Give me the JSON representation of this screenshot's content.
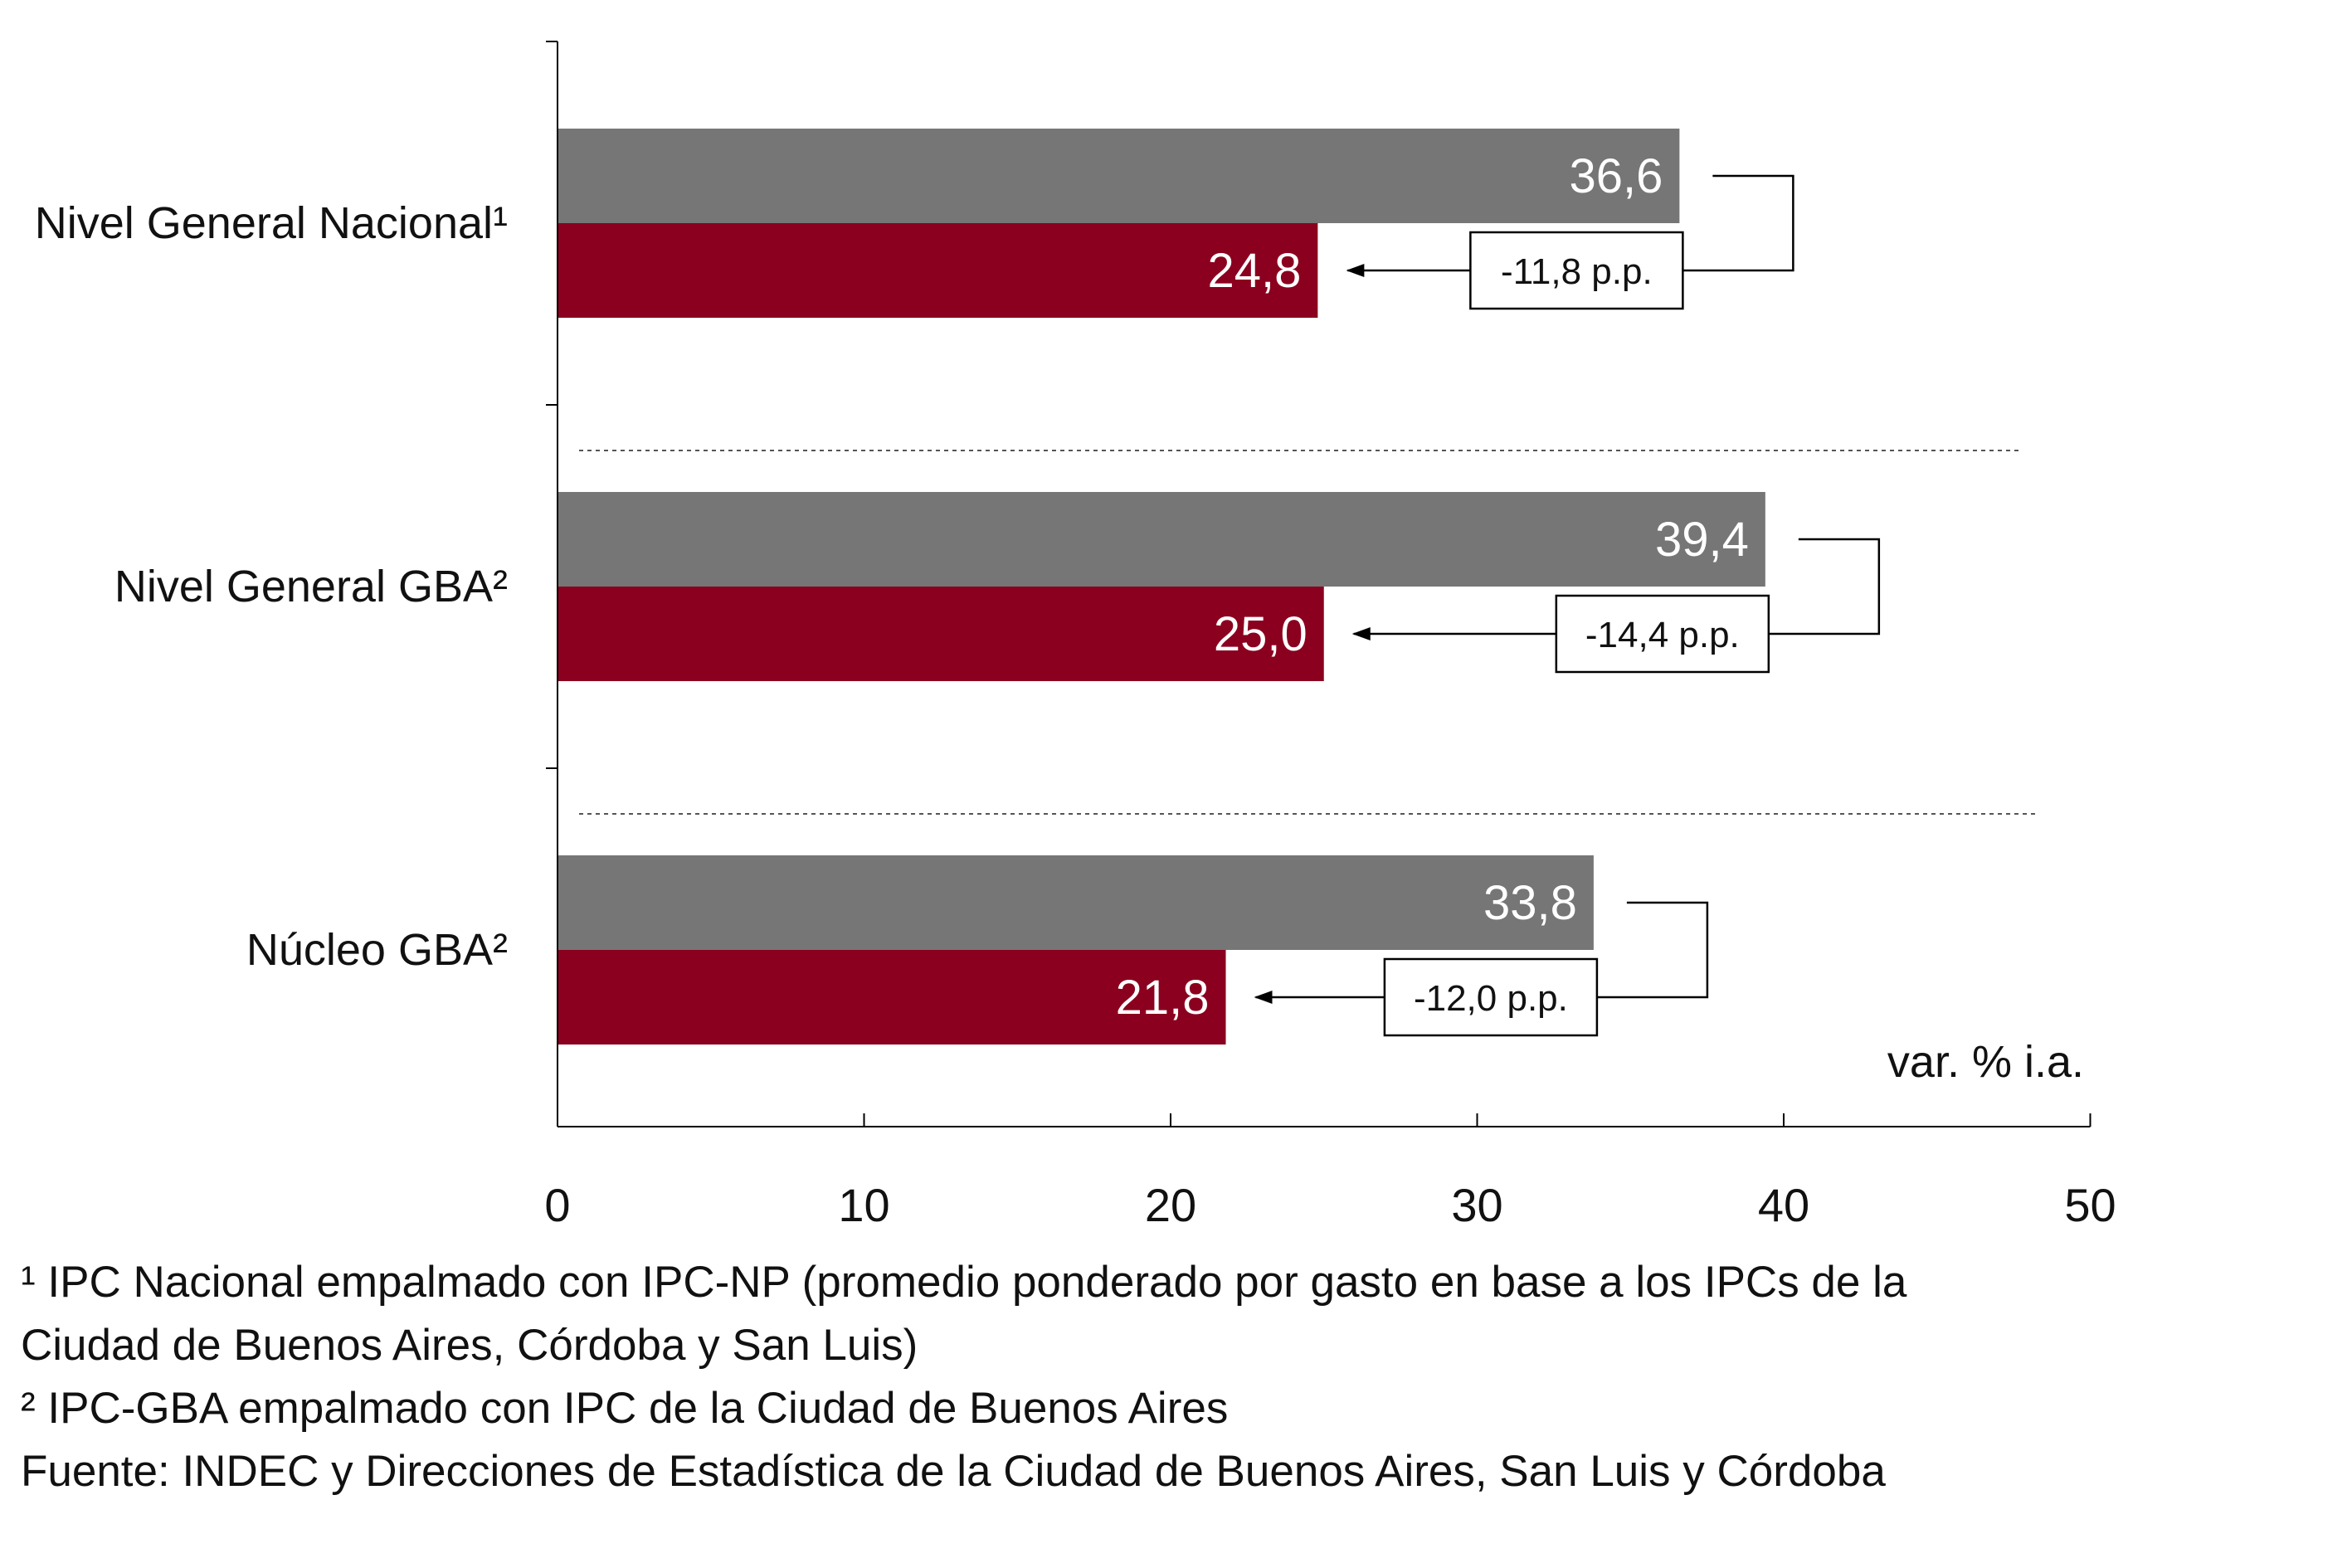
{
  "chart_data": {
    "type": "bar",
    "orientation": "horizontal",
    "categories": [
      "Nivel General Nacional¹",
      "Nivel General GBA²",
      "Núcleo GBA²"
    ],
    "series": [
      {
        "values": [
          36.6,
          39.4,
          33.8
        ],
        "value_labels": [
          "36,6",
          "39,4",
          "33,8"
        ],
        "color": "#767676"
      },
      {
        "values": [
          24.8,
          25.0,
          21.8
        ],
        "value_labels": [
          "24,8",
          "25,0",
          "21,8"
        ],
        "color": "#8b001e"
      }
    ],
    "differences": [
      "-11,8 p.p.",
      "-14,4 p.p.",
      "-12,0 p.p."
    ],
    "xlim": [
      0,
      50
    ],
    "xticks": [
      0,
      10,
      20,
      30,
      40,
      50
    ],
    "xtick_labels": [
      "0",
      "10",
      "20",
      "30",
      "40",
      "50"
    ],
    "xlabel": "var. % i.a.",
    "grid": false
  },
  "footnotes": {
    "note1_line1": "¹ IPC Nacional empalmado con IPC-NP (promedio ponderado por gasto en base a los IPCs de la",
    "note1_line2": "Ciudad de Buenos Aires, Córdoba y San Luis)",
    "note2": "² IPC-GBA empalmado con IPC de la Ciudad de Buenos Aires",
    "source": "Fuente: INDEC y Direcciones de Estadística de la Ciudad de Buenos Aires, San Luis y Córdoba"
  }
}
